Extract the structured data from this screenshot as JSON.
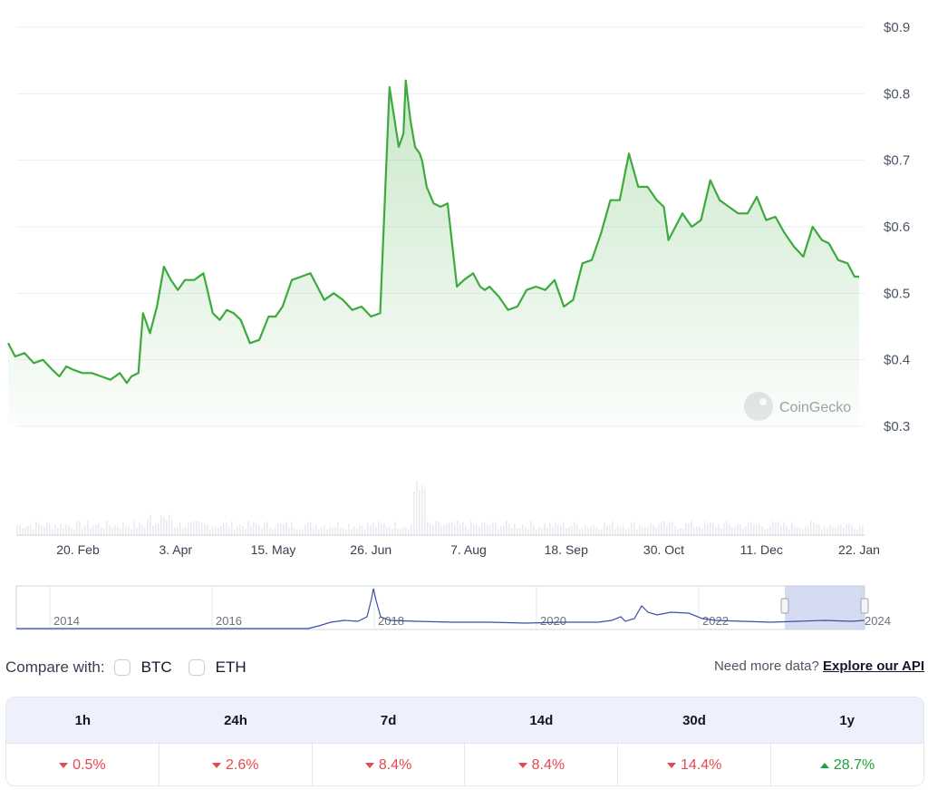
{
  "colors": {
    "line": "#3daa3d",
    "up": "#22a03d",
    "down": "#e5484d",
    "navigator_line": "#3b4fa0",
    "navigator_range": "#b9c4ea"
  },
  "watermark": "CoinGecko",
  "chart_data": {
    "type": "line",
    "title": "",
    "ylabel": "",
    "ylim": [
      0.3,
      0.9
    ],
    "y_ticks": [
      "$0.9",
      "$0.8",
      "$0.7",
      "$0.6",
      "$0.5",
      "$0.4",
      "$0.3"
    ],
    "y_tick_values": [
      0.9,
      0.8,
      0.7,
      0.6,
      0.5,
      0.4,
      0.3
    ],
    "x_ticks": [
      "20. Feb",
      "3. Apr",
      "15. May",
      "26. Jun",
      "7. Aug",
      "18. Sep",
      "30. Oct",
      "11. Dec",
      "22. Jan"
    ],
    "x_tick_dates": [
      "2023-02-20",
      "2023-04-03",
      "2023-05-15",
      "2023-06-26",
      "2023-08-07",
      "2023-09-18",
      "2023-10-30",
      "2023-12-11",
      "2024-01-22"
    ],
    "grid": true,
    "series": [
      {
        "x": [
          "2023-01-21",
          "2023-01-24",
          "2023-01-28",
          "2023-02-01",
          "2023-02-05",
          "2023-02-09",
          "2023-02-12",
          "2023-02-15",
          "2023-02-18",
          "2023-02-22",
          "2023-02-26",
          "2023-03-02",
          "2023-03-06",
          "2023-03-10",
          "2023-03-13",
          "2023-03-15",
          "2023-03-18",
          "2023-03-20",
          "2023-03-23",
          "2023-03-26",
          "2023-03-29",
          "2023-04-01",
          "2023-04-04",
          "2023-04-07",
          "2023-04-11",
          "2023-04-15",
          "2023-04-19",
          "2023-04-22",
          "2023-04-25",
          "2023-04-28",
          "2023-05-01",
          "2023-05-05",
          "2023-05-09",
          "2023-05-13",
          "2023-05-16",
          "2023-05-19",
          "2023-05-23",
          "2023-05-27",
          "2023-05-31",
          "2023-06-03",
          "2023-06-06",
          "2023-06-10",
          "2023-06-14",
          "2023-06-18",
          "2023-06-22",
          "2023-06-26",
          "2023-06-30",
          "2023-07-04",
          "2023-07-08",
          "2023-07-10",
          "2023-07-11",
          "2023-07-12",
          "2023-07-13",
          "2023-07-15",
          "2023-07-17",
          "2023-07-18",
          "2023-07-20",
          "2023-07-23",
          "2023-07-26",
          "2023-07-29",
          "2023-08-02",
          "2023-08-05",
          "2023-08-09",
          "2023-08-12",
          "2023-08-14",
          "2023-08-16",
          "2023-08-20",
          "2023-08-24",
          "2023-08-28",
          "2023-09-01",
          "2023-09-05",
          "2023-09-09",
          "2023-09-13",
          "2023-09-17",
          "2023-09-21",
          "2023-09-25",
          "2023-09-29",
          "2023-10-03",
          "2023-10-07",
          "2023-10-11",
          "2023-10-15",
          "2023-10-19",
          "2023-10-23",
          "2023-10-27",
          "2023-10-30",
          "2023-11-01",
          "2023-11-04",
          "2023-11-07",
          "2023-11-11",
          "2023-11-15",
          "2023-11-19",
          "2023-11-23",
          "2023-11-27",
          "2023-12-01",
          "2023-12-05",
          "2023-12-09",
          "2023-12-13",
          "2023-12-17",
          "2023-12-21",
          "2023-12-25",
          "2023-12-29",
          "2024-01-02",
          "2024-01-06",
          "2024-01-09",
          "2024-01-13",
          "2024-01-17",
          "2024-01-20",
          "2024-01-22"
        ],
        "y": [
          0.425,
          0.405,
          0.41,
          0.395,
          0.4,
          0.385,
          0.375,
          0.39,
          0.385,
          0.38,
          0.38,
          0.375,
          0.37,
          0.38,
          0.365,
          0.375,
          0.38,
          0.47,
          0.44,
          0.48,
          0.54,
          0.52,
          0.505,
          0.52,
          0.52,
          0.53,
          0.47,
          0.46,
          0.475,
          0.47,
          0.46,
          0.425,
          0.43,
          0.465,
          0.465,
          0.48,
          0.52,
          0.525,
          0.53,
          0.51,
          0.49,
          0.5,
          0.49,
          0.475,
          0.48,
          0.465,
          0.47,
          0.81,
          0.72,
          0.74,
          0.82,
          0.79,
          0.76,
          0.72,
          0.71,
          0.7,
          0.66,
          0.635,
          0.63,
          0.635,
          0.51,
          0.52,
          0.53,
          0.51,
          0.505,
          0.51,
          0.495,
          0.475,
          0.48,
          0.505,
          0.51,
          0.505,
          0.52,
          0.48,
          0.49,
          0.545,
          0.55,
          0.59,
          0.64,
          0.64,
          0.71,
          0.66,
          0.66,
          0.64,
          0.63,
          0.58,
          0.6,
          0.62,
          0.6,
          0.61,
          0.67,
          0.64,
          0.63,
          0.62,
          0.62,
          0.645,
          0.61,
          0.615,
          0.59,
          0.57,
          0.555,
          0.6,
          0.58,
          0.575,
          0.55,
          0.545,
          0.525,
          0.525
        ]
      }
    ],
    "navigator": {
      "x_ticks": [
        "2014",
        "2016",
        "2018",
        "2020",
        "2022",
        "2024"
      ],
      "selected_range": [
        "2023-01-21",
        "2024-01-22"
      ]
    }
  },
  "compare": {
    "label": "Compare with:",
    "options": [
      "BTC",
      "ETH"
    ]
  },
  "api": {
    "prefix": "Need more data?",
    "link": "Explore our API"
  },
  "performance": [
    {
      "period": "1h",
      "value": "0.5%",
      "dir": "down"
    },
    {
      "period": "24h",
      "value": "2.6%",
      "dir": "down"
    },
    {
      "period": "7d",
      "value": "8.4%",
      "dir": "down"
    },
    {
      "period": "14d",
      "value": "8.4%",
      "dir": "down"
    },
    {
      "period": "30d",
      "value": "14.4%",
      "dir": "down"
    },
    {
      "period": "1y",
      "value": "28.7%",
      "dir": "up"
    }
  ]
}
